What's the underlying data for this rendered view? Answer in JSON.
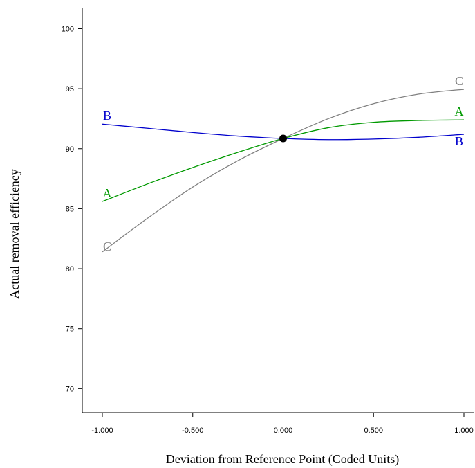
{
  "chart_data": {
    "type": "line",
    "title": "",
    "xlabel": "Deviation from Reference Point (Coded Units)",
    "ylabel": "Actual removal efficiency",
    "xlim": [
      -1.0,
      1.0
    ],
    "ylim": [
      68,
      101.7
    ],
    "x_ticks": [
      -1.0,
      -0.5,
      0.0,
      0.5,
      1.0
    ],
    "x_tick_labels": [
      "-1.000",
      "-0.500",
      "0.000",
      "0.500",
      "1.000"
    ],
    "y_ticks": [
      70,
      75,
      80,
      85,
      90,
      95,
      100
    ],
    "y_tick_labels": [
      "70",
      "75",
      "80",
      "85",
      "90",
      "95",
      "100"
    ],
    "grid": false,
    "reference_point": {
      "x": 0.0,
      "y": 90.85
    },
    "series": [
      {
        "name": "A",
        "color": "#009900",
        "x": [
          -1.0,
          -0.75,
          -0.5,
          -0.25,
          0.0,
          0.25,
          0.5,
          0.75,
          1.0
        ],
        "y": [
          85.6,
          87.06,
          88.43,
          89.7,
          90.85,
          91.75,
          92.2,
          92.35,
          92.4
        ]
      },
      {
        "name": "B",
        "color": "#0000cc",
        "x": [
          -1.0,
          -0.75,
          -0.5,
          -0.25,
          0.0,
          0.25,
          0.5,
          0.75,
          1.0
        ],
        "y": [
          92.05,
          91.7,
          91.35,
          91.05,
          90.85,
          90.75,
          90.8,
          90.95,
          91.2
        ]
      },
      {
        "name": "C",
        "color": "#808080",
        "x": [
          -1.0,
          -0.75,
          -0.5,
          -0.25,
          0.0,
          0.25,
          0.5,
          0.75,
          1.0
        ],
        "y": [
          81.4,
          84.2,
          86.8,
          89.0,
          90.85,
          92.5,
          93.75,
          94.55,
          94.95
        ]
      }
    ]
  }
}
